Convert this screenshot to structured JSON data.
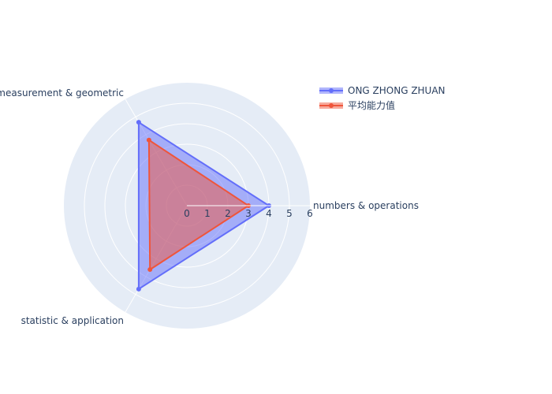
{
  "chart_data": {
    "type": "radar",
    "categories": [
      "numbers & operations",
      "measurement & geometric",
      "statistic & application"
    ],
    "radial_ticks": [
      "0",
      "1",
      "2",
      "3",
      "4",
      "5",
      "6"
    ],
    "radial_range": [
      0,
      6
    ],
    "grid": true,
    "legend_position": "top-right",
    "series": [
      {
        "name": "ONG ZHONG ZHUAN",
        "values": [
          4,
          4.7,
          4.7
        ],
        "color": "#636efa"
      },
      {
        "name": "平均能力值",
        "values": [
          3,
          3.7,
          3.6
        ],
        "color": "#ef553b"
      }
    ]
  },
  "colors": {
    "polar_bg": "#e5ecf6",
    "grid": "#ffffff",
    "text": "#2a3f5f"
  }
}
